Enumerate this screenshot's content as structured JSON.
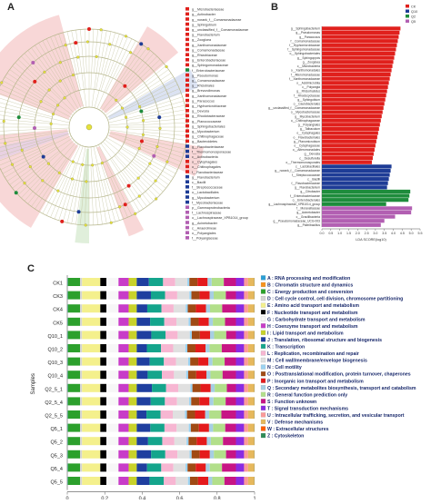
{
  "panels": {
    "a": "A",
    "b": "B",
    "c": "C"
  },
  "colors": {
    "red": "#e0201c",
    "blue": "#1e3c96",
    "green": "#1e8c3c",
    "purple": "#b25fb2",
    "lightgreen": "#b8d98a"
  },
  "cladogram": {
    "legend": [
      {
        "color": "red",
        "label": "g__Microbacteriaceae"
      },
      {
        "color": "red",
        "label": "g__Actinobacter"
      },
      {
        "color": "red",
        "label": "g__norank_f__Comamonadaceae"
      },
      {
        "color": "red",
        "label": "g__Sphingobium"
      },
      {
        "color": "red",
        "label": "g__unclassified_f__Comamonadaceae"
      },
      {
        "color": "red",
        "label": "g__Flavobacterium"
      },
      {
        "color": "red",
        "label": "g__Zoogloea"
      },
      {
        "color": "red",
        "label": "g__Xanthomonadaceae"
      },
      {
        "color": "red",
        "label": "g__Comamonadaceae"
      },
      {
        "color": "red",
        "label": "g__Rhizobiaceae"
      },
      {
        "color": "red",
        "label": "g__Enterobacteriaceae"
      },
      {
        "color": "red",
        "label": "g__Sphingomonadaceae"
      },
      {
        "color": "green",
        "label": "f__Enterobacteriaceae"
      },
      {
        "color": "red",
        "label": "g__Pseudomonas"
      },
      {
        "color": "red",
        "label": "g__Comamonadaceae"
      },
      {
        "color": "red",
        "label": "g__Rhizobiales"
      },
      {
        "color": "red",
        "label": "g__Brevundimonas"
      },
      {
        "color": "red",
        "label": "g__Xanthomonadaceae"
      },
      {
        "color": "red",
        "label": "g__Paracoccus"
      },
      {
        "color": "red",
        "label": "g__Hyphomicrobiaceae"
      },
      {
        "color": "red",
        "label": "g__Devosia"
      },
      {
        "color": "red",
        "label": "g__Rhodobacteraceae"
      },
      {
        "color": "red",
        "label": "g__Planococcaceae"
      },
      {
        "color": "red",
        "label": "g__Sphingobacteriales"
      },
      {
        "color": "red",
        "label": "g__Mycobacterium"
      },
      {
        "color": "red",
        "label": "g__Chitinophagaceae"
      },
      {
        "color": "red",
        "label": "g__Bacteroidetes"
      },
      {
        "color": "blue",
        "label": "g__Flavobacteriaceae"
      },
      {
        "color": "blue",
        "label": "f__Thermomonosporaceae"
      },
      {
        "color": "blue",
        "label": "c__Actinobacteria"
      },
      {
        "color": "red",
        "label": "o__Cytophagales"
      },
      {
        "color": "red",
        "label": "o__Chitinophagales"
      },
      {
        "color": "red",
        "label": "f__Flavobacteriaceae"
      },
      {
        "color": "blue",
        "label": "g__Flavobacterium"
      },
      {
        "color": "blue",
        "label": "c__Bacilli"
      },
      {
        "color": "blue",
        "label": "f__Streptococcaceae"
      },
      {
        "color": "blue",
        "label": "o__Lactobacillales"
      },
      {
        "color": "blue",
        "label": "g__Mycobacterium"
      },
      {
        "color": "blue",
        "label": "f__Mycobacteriaceae"
      },
      {
        "color": "purple",
        "label": "p__Gammaproteobacteria"
      },
      {
        "color": "purple",
        "label": "f__Lachnospiraceae"
      },
      {
        "color": "purple",
        "label": "o__Lachnospiraceae_XPB1014_group"
      },
      {
        "color": "purple",
        "label": "g__Acinetobacter"
      },
      {
        "color": "purple",
        "label": "c__Anaerolineae"
      },
      {
        "color": "purple",
        "label": "o__Polyangiales"
      },
      {
        "color": "purple",
        "label": "f__Polyangiaceae"
      }
    ]
  },
  "lda": {
    "axis_title": "LDA SCORE(log10)",
    "groups": [
      {
        "label": "CK",
        "color": "red"
      },
      {
        "label": "Q10",
        "color": "blue"
      },
      {
        "label": "Q2",
        "color": "green"
      },
      {
        "label": "Q5",
        "color": "purple"
      }
    ],
    "ticks": [
      "0.0",
      "0.5",
      "1.0",
      "1.5",
      "2.0",
      "2.5",
      "3.0",
      "3.5",
      "4.0",
      "4.5",
      "5.0",
      "5.5"
    ]
  },
  "chart_data": [
    {
      "type": "bar",
      "orientation": "horizontal",
      "xlabel": "LDA SCORE(log10)",
      "xlim": [
        0,
        5.5
      ],
      "legend": [
        "CK",
        "Q10",
        "Q2",
        "Q5"
      ],
      "bars": [
        {
          "label": "g__Sphingobacterium",
          "group": "CK",
          "value": 4.4
        },
        {
          "label": "g__Pseudomonas",
          "group": "CK",
          "value": 4.35
        },
        {
          "label": "g__Paracoccus",
          "group": "CK",
          "value": 4.3
        },
        {
          "label": "f__Comamonadaceae",
          "group": "CK",
          "value": 4.25
        },
        {
          "label": "f__Hyphomicrobiaceae",
          "group": "CK",
          "value": 4.2
        },
        {
          "label": "f__Sphingomonadaceae",
          "group": "CK",
          "value": 4.15
        },
        {
          "label": "o__Sphingobacteriales",
          "group": "CK",
          "value": 4.1
        },
        {
          "label": "g__Sphingopyxis",
          "group": "CK",
          "value": 4.05
        },
        {
          "label": "g__Zoogloea",
          "group": "CK",
          "value": 4.0
        },
        {
          "label": "c__Microbacteria",
          "group": "CK",
          "value": 3.95
        },
        {
          "label": "o__Xanthomonadales",
          "group": "CK",
          "value": 3.9
        },
        {
          "label": "f__Alteromonadaceae",
          "group": "CK",
          "value": 3.85
        },
        {
          "label": "f__Xanthomonadaceae",
          "group": "CK",
          "value": 3.8
        },
        {
          "label": "o__Acidimicrobiia",
          "group": "CK",
          "value": 3.75
        },
        {
          "label": "c__Polyangia",
          "group": "CK",
          "value": 3.7
        },
        {
          "label": "g__Rhizorhabdus",
          "group": "CK",
          "value": 3.65
        },
        {
          "label": "f__Rhodocyclaceae",
          "group": "CK",
          "value": 3.6
        },
        {
          "label": "g__Sphingobium",
          "group": "CK",
          "value": 3.55
        },
        {
          "label": "o__Caulobacterales",
          "group": "CK",
          "value": 3.5
        },
        {
          "label": "g__unclassified_f__Comamonadaceae",
          "group": "CK",
          "value": 3.45
        },
        {
          "label": "o__Mycobacteriaceae",
          "group": "CK",
          "value": 3.4
        },
        {
          "label": "g__Mycobacterium",
          "group": "CK",
          "value": 3.35
        },
        {
          "label": "o__Chitinophagaceae",
          "group": "CK",
          "value": 3.3
        },
        {
          "label": "g__Polyangiales",
          "group": "CK",
          "value": 3.25
        },
        {
          "label": "g__Taibaculum",
          "group": "CK",
          "value": 3.2
        },
        {
          "label": "o__Cytophagales",
          "group": "CK",
          "value": 3.15
        },
        {
          "label": "o__Flavobacteriales",
          "group": "CK",
          "value": 3.1
        },
        {
          "label": "g__Planomicrobium",
          "group": "CK",
          "value": 3.05
        },
        {
          "label": "o__Cytophagaceae",
          "group": "CK",
          "value": 3.0
        },
        {
          "label": "o__Alteromonadales",
          "group": "CK",
          "value": 2.95
        },
        {
          "label": "g__Devosia",
          "group": "CK",
          "value": 2.9
        },
        {
          "label": "c__Desulfurella",
          "group": "CK",
          "value": 2.85
        },
        {
          "label": "o__Thermomonosporales",
          "group": "CK",
          "value": 2.8
        },
        {
          "label": "c__Lactobacillales",
          "group": "Q10",
          "value": 3.9
        },
        {
          "label": "g__norank_f__Comamonadaceae",
          "group": "Q10",
          "value": 3.85
        },
        {
          "label": "f__Streptococcaceae",
          "group": "Q10",
          "value": 3.8
        },
        {
          "label": "c__Bacilli",
          "group": "Q10",
          "value": 3.75
        },
        {
          "label": "f__Flavobacteriaceae",
          "group": "Q10",
          "value": 3.7
        },
        {
          "label": "g__Flavobacterium",
          "group": "Q10",
          "value": 3.65
        },
        {
          "label": "g__Citrobacter",
          "group": "Q2",
          "value": 4.95
        },
        {
          "label": "f__Enterobacteriaceae",
          "group": "Q2",
          "value": 4.9
        },
        {
          "label": "o__Enterobacterales",
          "group": "Q2",
          "value": 4.85
        },
        {
          "label": "g__Lachnospiraceae_XPB1014_group",
          "group": "Q2",
          "value": 3.6
        },
        {
          "label": "f__Moraxellaceae",
          "group": "Q5",
          "value": 5.05
        },
        {
          "label": "g__Acinetobacter",
          "group": "Q5",
          "value": 5.0
        },
        {
          "label": "c__Gracilibacteria",
          "group": "Q5",
          "value": 4.1
        },
        {
          "label": "g__Pseudomonadaceae_UCG-003",
          "group": "Q5",
          "value": 3.5
        },
        {
          "label": "g__Paenibacillus",
          "group": "Q5",
          "value": 3.3
        }
      ]
    },
    {
      "type": "bar",
      "orientation": "horizontal",
      "stacked": true,
      "normalized": true,
      "xlabel": "Relative Abundance",
      "ylabel": "Samples",
      "xlim": [
        0,
        1
      ],
      "xticks": [
        "0",
        "0.2",
        "0.4",
        "0.6",
        "0.8",
        "1"
      ],
      "categories": [
        "CK1",
        "CK3",
        "CK4",
        "CK5",
        "Q10_1",
        "Q10_2",
        "Q10_3",
        "Q10_4",
        "Q2_5_1",
        "Q2_5_4",
        "Q2_5_5",
        "Q5_1",
        "Q5_2",
        "Q5_3",
        "Q5_4",
        "Q5_5"
      ],
      "series": [
        {
          "name": "A : RNA processing and modification",
          "color": "#2a9fd6",
          "value": 0.002
        },
        {
          "name": "B : Chromatin structure and dynamics",
          "color": "#f7931e",
          "value": 0.001
        },
        {
          "name": "C : Energy production and conversion",
          "color": "#2ca02c",
          "value": 0.06
        },
        {
          "name": "D : Cell cycle control, cell division, chromosome partitioning",
          "color": "#d4d4d4",
          "value": 0.01
        },
        {
          "name": "E : Amino acid transport and metabolism",
          "color": "#f4f08c",
          "value": 0.09
        },
        {
          "name": "F : Nucleotide transport and metabolism",
          "color": "#000000",
          "value": 0.03
        },
        {
          "name": "G : Carbohydrate transport and metabolism",
          "color": "#f7f7f7",
          "value": 0.06
        },
        {
          "name": "H : Coenzyme transport and metabolism",
          "color": "#c83cc8",
          "value": 0.05
        },
        {
          "name": "I : Lipid transport and metabolism",
          "color": "#c8d22a",
          "value": 0.04
        },
        {
          "name": "J : Translation, ribosomal structure and biogenesis",
          "color": "#1f3f9f",
          "value": 0.06
        },
        {
          "name": "K : Transcription",
          "color": "#14a58c",
          "value": 0.07
        },
        {
          "name": "L : Replication, recombination and repair",
          "color": "#f7b6d2",
          "value": 0.06
        },
        {
          "name": "M : Cell wall/membrane/envelope biogenesis",
          "color": "#e0e0e0",
          "value": 0.06
        },
        {
          "name": "N : Cell motility",
          "color": "#9bd3f2",
          "value": 0.01
        },
        {
          "name": "O : Posttranslational modification, protein turnover, chaperones",
          "color": "#a04a14",
          "value": 0.04
        },
        {
          "name": "P : Inorganic ion transport and metabolism",
          "color": "#e41a1c",
          "value": 0.05
        },
        {
          "name": "Q : Secondary metabolites biosynthesis, transport and catabolism",
          "color": "#a6cee3",
          "value": 0.02
        },
        {
          "name": "R : General function prediction only",
          "color": "#b2df8a",
          "value": 0.06
        },
        {
          "name": "S : Function unknown",
          "color": "#c71585",
          "value": 0.06
        },
        {
          "name": "T : Signal transduction mechanisms",
          "color": "#8a2be2",
          "value": 0.04
        },
        {
          "name": "U : Intracellular trafficking, secretion, and vesicular transport",
          "color": "#fb9a99",
          "value": 0.02
        },
        {
          "name": "V : Defense mechanisms",
          "color": "#e6b85c",
          "value": 0.03
        },
        {
          "name": "W : Extracellular structures",
          "color": "#ff5a00",
          "value": 0.001
        },
        {
          "name": "Z : Cytoskeleton",
          "color": "#2e8b57",
          "value": 0.001
        }
      ]
    }
  ]
}
